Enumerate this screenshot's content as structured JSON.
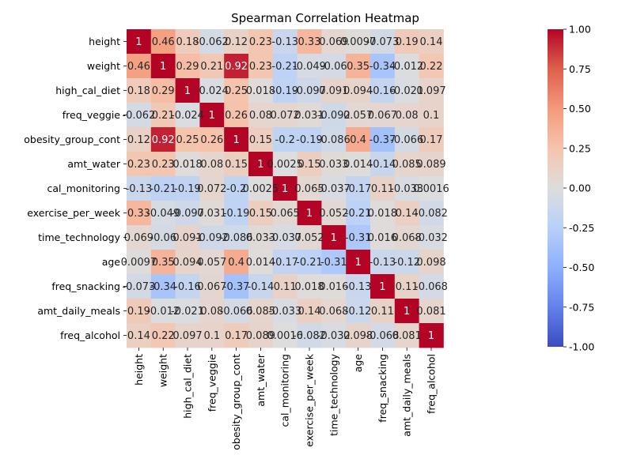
{
  "chart_data": {
    "type": "heatmap",
    "title": "Spearman Correlation Heatmap",
    "rows": [
      "height",
      "weight",
      "high_cal_diet",
      "freq_veggie",
      "obesity_group_cont",
      "amt_water",
      "cal_monitoring",
      "exercise_per_week",
      "time_technology",
      "age",
      "freq_snacking",
      "amt_daily_meals",
      "freq_alcohol"
    ],
    "cols": [
      "height",
      "weight",
      "high_cal_diet",
      "freq_veggie",
      "obesity_group_cont",
      "amt_water",
      "cal_monitoring",
      "exercise_per_week",
      "time_technology",
      "age",
      "freq_snacking",
      "amt_daily_meals",
      "freq_alcohol"
    ],
    "values": [
      [
        1,
        0.46,
        0.18,
        -0.062,
        0.12,
        0.23,
        -0.13,
        0.33,
        0.069,
        0.0097,
        -0.073,
        0.19,
        0.14
      ],
      [
        0.46,
        1,
        0.29,
        0.21,
        0.92,
        0.23,
        -0.21,
        -0.049,
        -0.06,
        0.35,
        -0.34,
        -0.012,
        0.22
      ],
      [
        0.18,
        0.29,
        1,
        -0.024,
        0.25,
        0.018,
        -0.19,
        -0.097,
        0.091,
        0.094,
        -0.16,
        -0.021,
        0.097
      ],
      [
        -0.062,
        0.21,
        -0.024,
        1,
        0.26,
        0.08,
        0.072,
        0.031,
        -0.092,
        0.057,
        0.067,
        0.08,
        0.1
      ],
      [
        0.12,
        0.92,
        0.25,
        0.26,
        1,
        0.15,
        -0.2,
        -0.19,
        -0.086,
        0.4,
        -0.37,
        -0.066,
        0.17
      ],
      [
        0.23,
        0.23,
        0.018,
        0.08,
        0.15,
        1,
        0.0025,
        0.15,
        0.033,
        0.014,
        -0.14,
        0.085,
        0.089
      ],
      [
        -0.13,
        -0.21,
        -0.19,
        0.072,
        -0.2,
        0.0025,
        1,
        0.065,
        -0.037,
        -0.17,
        0.11,
        -0.033,
        0.0016
      ],
      [
        0.33,
        -0.049,
        -0.097,
        0.031,
        -0.19,
        0.15,
        0.065,
        1,
        0.052,
        -0.21,
        0.018,
        0.14,
        -0.082
      ],
      [
        0.069,
        -0.06,
        0.091,
        -0.092,
        -0.086,
        0.033,
        -0.037,
        0.052,
        1,
        -0.31,
        0.016,
        0.068,
        -0.032
      ],
      [
        0.0097,
        0.35,
        0.094,
        0.057,
        0.4,
        0.014,
        -0.17,
        -0.21,
        -0.31,
        1,
        -0.13,
        -0.12,
        0.098
      ],
      [
        -0.073,
        -0.34,
        -0.16,
        0.067,
        -0.37,
        -0.14,
        0.11,
        0.018,
        0.016,
        -0.13,
        1,
        0.11,
        -0.068
      ],
      [
        0.19,
        -0.012,
        -0.021,
        0.08,
        -0.066,
        0.085,
        -0.033,
        0.14,
        0.068,
        -0.12,
        0.11,
        1,
        0.081
      ],
      [
        0.14,
        0.22,
        0.097,
        0.1,
        0.17,
        0.089,
        0.0016,
        -0.082,
        -0.032,
        0.098,
        -0.068,
        0.081,
        1
      ]
    ],
    "vmin": -1,
    "vmax": 1,
    "colormap": "coolwarm",
    "colorbar_ticks": [
      "-1.00",
      "-0.75",
      "-0.50",
      "-0.25",
      "0.00",
      "0.25",
      "0.50",
      "0.75",
      "1.00"
    ]
  }
}
